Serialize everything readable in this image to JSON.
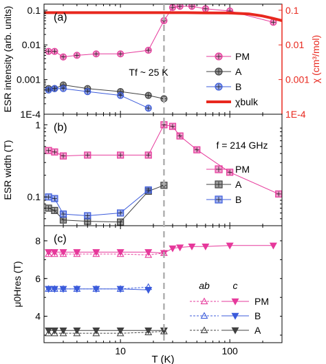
{
  "colors": {
    "pm": "#e6399b",
    "a": "#404040",
    "b": "#3b5bdb",
    "bulk": "#e8281e",
    "marker_line": "#b0b0b0"
  },
  "chart_data": [
    {
      "type": "scatter",
      "panel_label": "(a)",
      "ylabel": "ESR intensity (arb. units)",
      "ylabel_right": "χ (cm³/mol)",
      "yscale": "log",
      "ylim": [
        0.0001,
        0.15
      ],
      "yticks": [
        {
          "v": 0.1,
          "t": "0.1"
        },
        {
          "v": 0.01,
          "t": "0.01"
        },
        {
          "v": 0.001,
          "t": "0.001"
        },
        {
          "v": 0.0001,
          "t": "1E-4"
        }
      ],
      "yticks_right": [
        {
          "v": 0.1,
          "t": "0.1"
        },
        {
          "v": 0.01,
          "t": "0.01"
        },
        {
          "v": 0.001,
          "t": "0.001"
        },
        {
          "v": 0.0001,
          "t": "1E-4"
        }
      ],
      "annotation": {
        "text": "Tf ~ 25 K",
        "main": "T",
        "sub": "f",
        "rest": " ~ 25 K"
      },
      "legend": [
        "PM",
        "A",
        "B",
        "χbulk"
      ],
      "legend_position": "right",
      "series": [
        {
          "name": "PM",
          "color_key": "pm",
          "marker": "circle",
          "x": [
            2.2,
            2.5,
            3,
            4,
            6,
            10,
            18,
            25,
            30,
            35,
            45,
            60,
            100,
            250
          ],
          "y": [
            0.0065,
            0.0065,
            0.0045,
            0.005,
            0.0055,
            0.0055,
            0.007,
            0.05,
            0.12,
            0.13,
            0.13,
            0.11,
            0.095,
            0.045
          ]
        },
        {
          "name": "A",
          "color_key": "a",
          "marker": "circle",
          "x": [
            2.2,
            2.5,
            3,
            5,
            10,
            18,
            25
          ],
          "y": [
            0.00055,
            0.00055,
            0.0007,
            0.00055,
            0.00045,
            0.00035,
            0.00028
          ]
        },
        {
          "name": "B",
          "color_key": "b",
          "marker": "circle",
          "x": [
            2.2,
            2.5,
            3,
            5,
            10,
            18
          ],
          "y": [
            0.0005,
            0.00055,
            0.00055,
            0.00045,
            0.00035,
            0.00015
          ]
        },
        {
          "name": "χbulk",
          "color_key": "bulk",
          "style": "thick-line",
          "x": [
            2,
            10,
            25,
            40,
            60,
            100,
            150,
            200,
            250,
            300
          ],
          "y": [
            0.085,
            0.085,
            0.085,
            0.085,
            0.084,
            0.083,
            0.078,
            0.068,
            0.058,
            0.05
          ]
        }
      ]
    },
    {
      "type": "scatter",
      "panel_label": "(b)",
      "ylabel": "ESR width (T)",
      "yscale": "log",
      "ylim": [
        0.04,
        1.4
      ],
      "yticks": [
        {
          "v": 1,
          "t": "1"
        },
        {
          "v": 0.1,
          "t": "0.1"
        }
      ],
      "annotation": {
        "text": "f = 214 GHz",
        "main": "f",
        "rest": " = 214 GHz"
      },
      "legend": [
        "PM",
        "A",
        "B"
      ],
      "legend_position": "right",
      "series": [
        {
          "name": "PM",
          "color_key": "pm",
          "marker": "square",
          "x": [
            2.2,
            2.5,
            3,
            5,
            10,
            18,
            25,
            30,
            35,
            50,
            100,
            280
          ],
          "y": [
            0.44,
            0.42,
            0.37,
            0.38,
            0.38,
            0.38,
            1.0,
            0.95,
            0.7,
            0.45,
            0.22,
            0.11
          ]
        },
        {
          "name": "A",
          "color_key": "a",
          "marker": "square",
          "x": [
            2.2,
            2.5,
            3,
            5,
            10,
            18,
            25
          ],
          "y": [
            0.07,
            0.065,
            0.048,
            0.046,
            0.045,
            0.12,
            0.145
          ]
        },
        {
          "name": "B",
          "color_key": "b",
          "marker": "square",
          "x": [
            2.2,
            2.5,
            3,
            5,
            10,
            18
          ],
          "y": [
            0.1,
            0.095,
            0.058,
            0.055,
            0.06,
            0.125
          ]
        }
      ]
    },
    {
      "type": "scatter",
      "panel_label": "(c)",
      "ylabel": "μ0Hres (T)",
      "yscale": "linear",
      "ylim": [
        2.6,
        8.8
      ],
      "yticks": [
        {
          "v": 8,
          "t": "8"
        },
        {
          "v": 6,
          "t": "6"
        },
        {
          "v": 4,
          "t": "4"
        }
      ],
      "legend_headers": [
        "ab",
        "c"
      ],
      "legend": [
        "PM",
        "B",
        "A"
      ],
      "legend_position": "bottom-right",
      "series": [
        {
          "name": "PM c",
          "color_key": "pm",
          "marker": "triangle-down",
          "filled": true,
          "x": [
            2.2,
            2.5,
            3,
            4,
            6,
            10,
            18,
            25,
            30,
            35,
            45,
            60,
            100,
            250
          ],
          "y": [
            7.4,
            7.4,
            7.4,
            7.4,
            7.4,
            7.4,
            7.4,
            7.35,
            7.6,
            7.65,
            7.7,
            7.7,
            7.75,
            7.75
          ]
        },
        {
          "name": "PM ab",
          "color_key": "pm",
          "marker": "triangle-up",
          "filled": false,
          "x": [
            2.2,
            2.5,
            3,
            4,
            6,
            10,
            18,
            25
          ],
          "y": [
            7.3,
            7.3,
            7.3,
            7.3,
            7.3,
            7.3,
            7.25,
            7.35
          ]
        },
        {
          "name": "B c",
          "color_key": "b",
          "marker": "triangle-down",
          "filled": true,
          "x": [
            2.2,
            2.5,
            3,
            4,
            6,
            10,
            18
          ],
          "y": [
            5.45,
            5.45,
            5.45,
            5.45,
            5.45,
            5.45,
            5.4
          ]
        },
        {
          "name": "B ab",
          "color_key": "b",
          "marker": "triangle-up",
          "filled": false,
          "x": [
            2.2,
            2.5,
            3,
            4,
            6,
            10,
            18
          ],
          "y": [
            5.45,
            5.45,
            5.45,
            5.45,
            5.45,
            5.45,
            5.55
          ]
        },
        {
          "name": "A c",
          "color_key": "a",
          "marker": "triangle-down",
          "filled": true,
          "x": [
            2.2,
            2.5,
            3,
            4,
            6,
            10,
            18,
            25
          ],
          "y": [
            3.25,
            3.25,
            3.25,
            3.25,
            3.25,
            3.25,
            3.25,
            3.25
          ]
        },
        {
          "name": "A ab",
          "color_key": "a",
          "marker": "triangle-up",
          "filled": false,
          "x": [
            2.2,
            2.5,
            3,
            4,
            6,
            10,
            18,
            25
          ],
          "y": [
            3.1,
            3.1,
            3.1,
            3.1,
            3.1,
            3.1,
            3.15,
            3.2
          ]
        }
      ]
    }
  ],
  "x_axis": {
    "label": "T (K)",
    "label_main": "T",
    "label_rest": " (K)",
    "scale": "log",
    "xlim": [
      2,
      300
    ],
    "ticks": [
      {
        "v": 10,
        "t": "10"
      },
      {
        "v": 100,
        "t": "100"
      }
    ],
    "vline_at": 25
  }
}
